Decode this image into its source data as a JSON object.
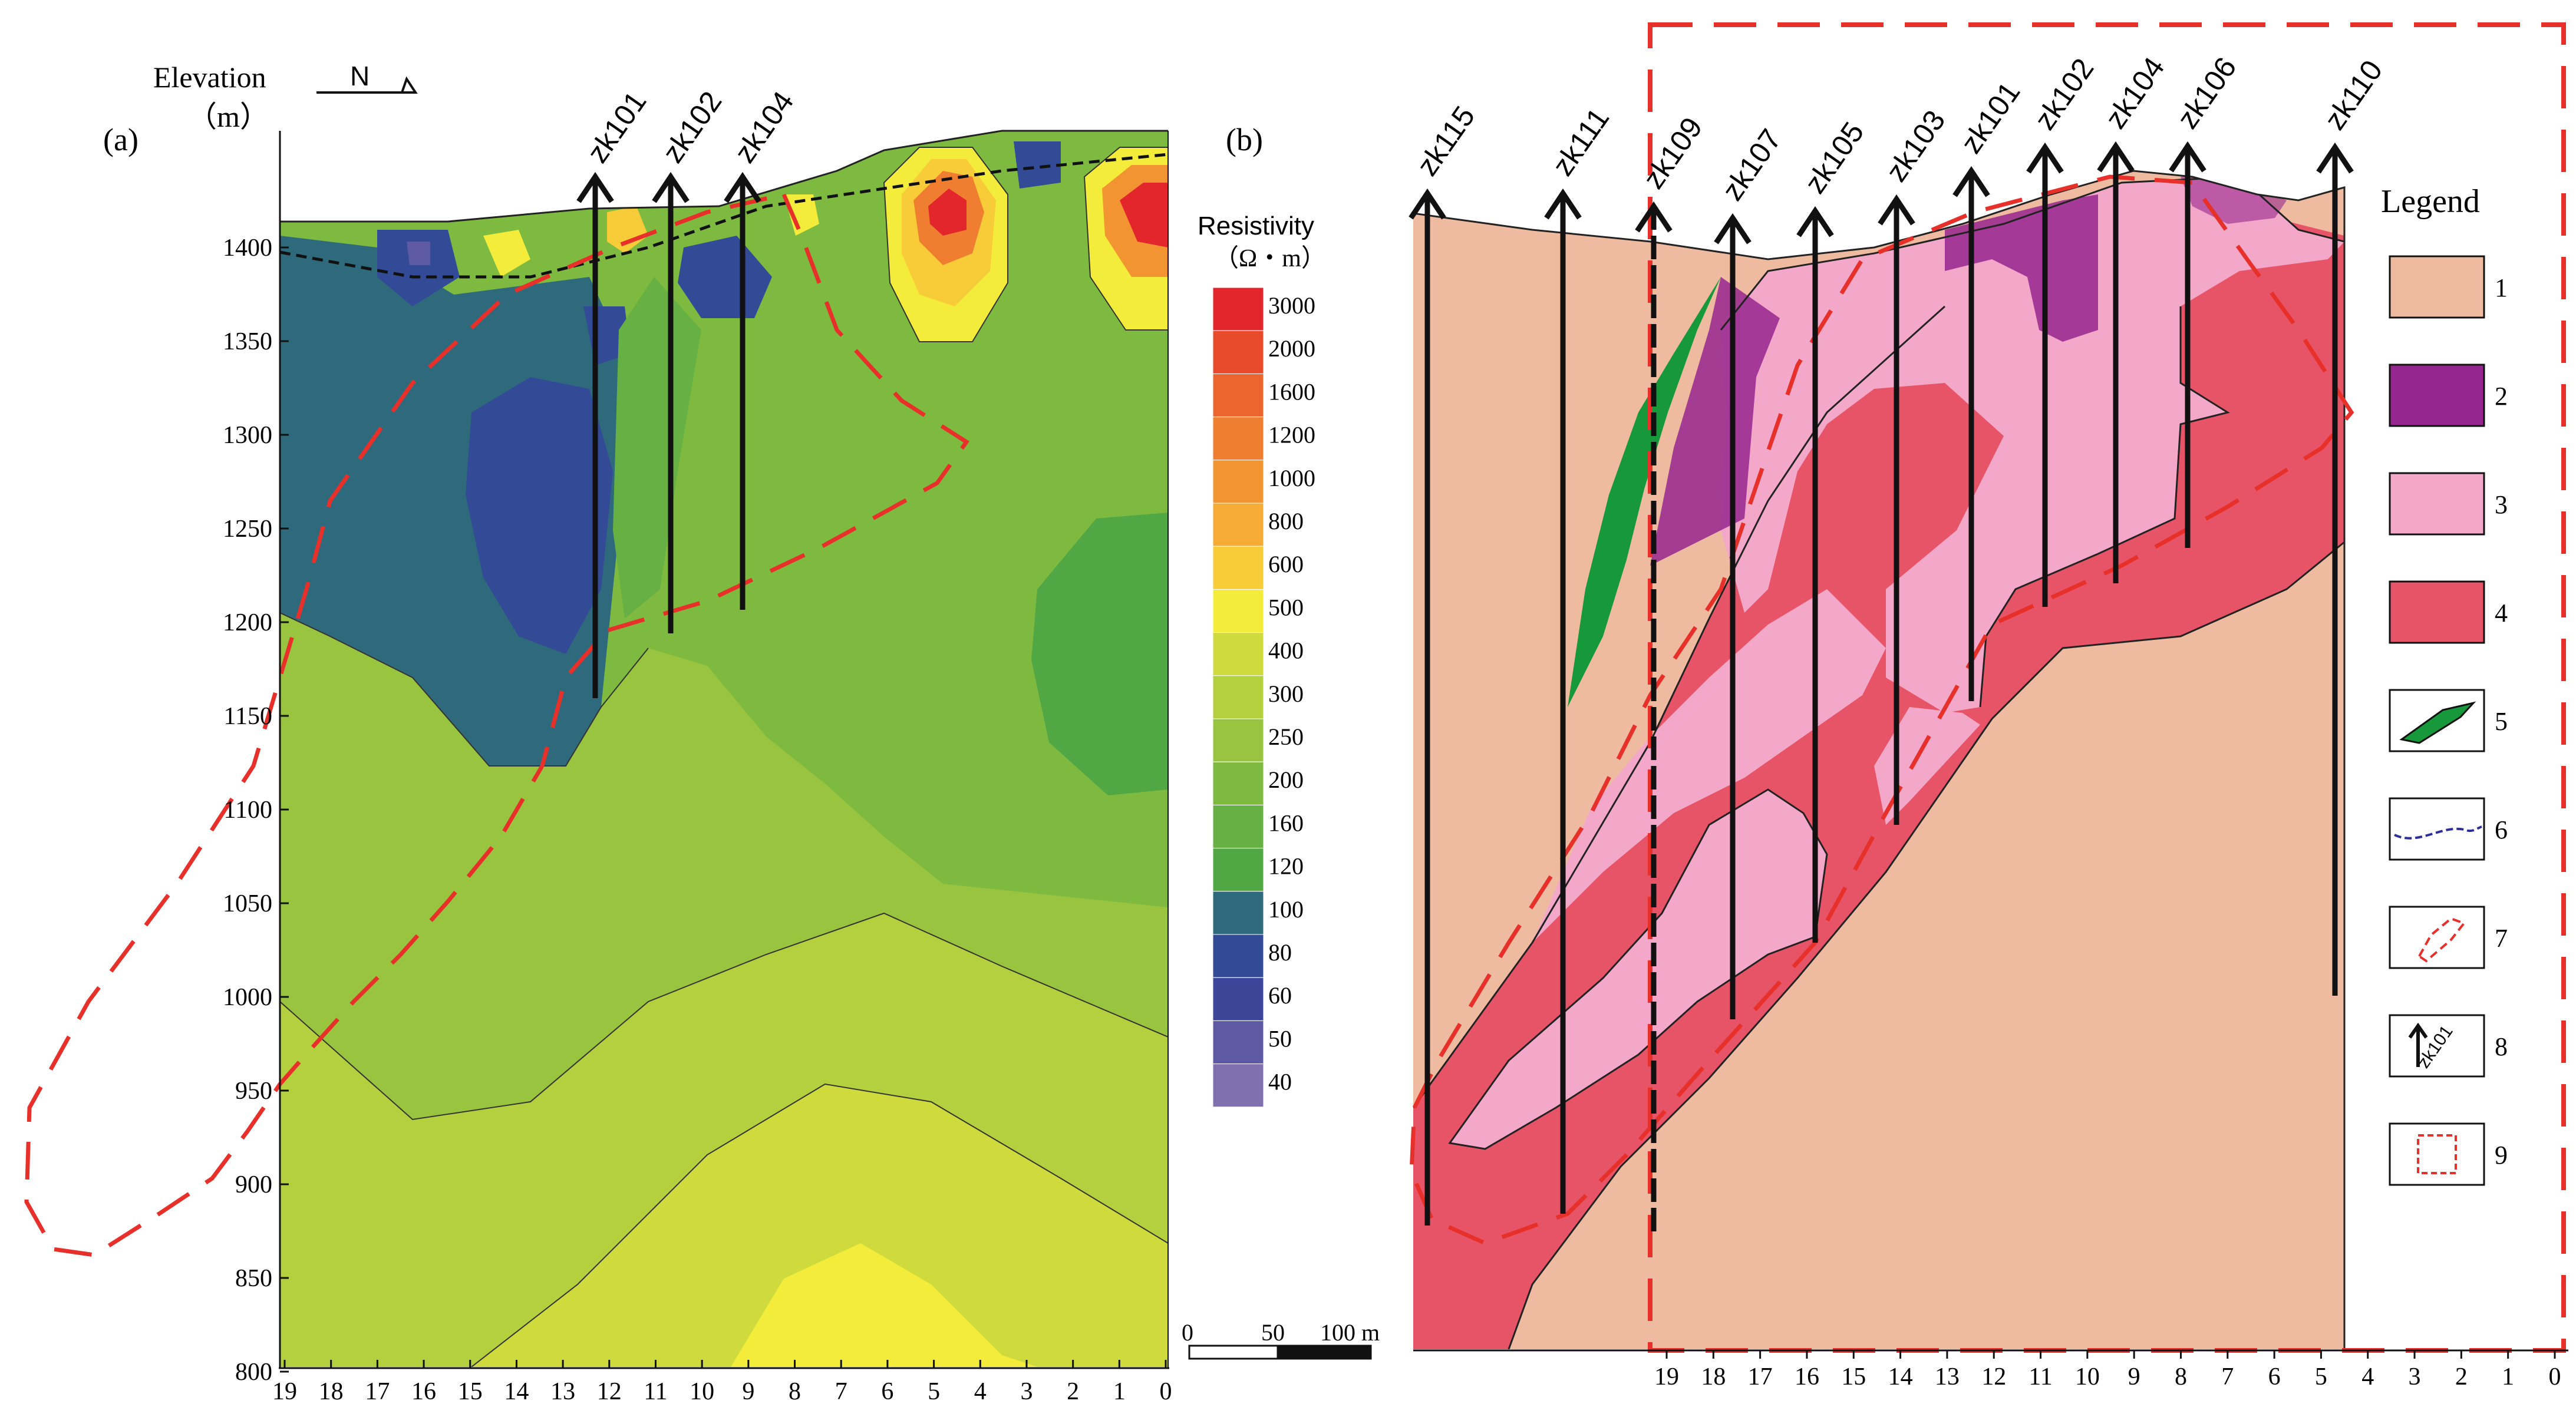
{
  "panel_a": {
    "label": "(a)",
    "elevation_label": "Elevation",
    "elevation_unit": "（m）",
    "north_label": "N",
    "y_ticks": [
      "1400",
      "1350",
      "1300",
      "1250",
      "1200",
      "1150",
      "1100",
      "1050",
      "1000",
      "950",
      "900",
      "850",
      "800"
    ],
    "x_ticks": [
      "19",
      "18",
      "17",
      "16",
      "15",
      "14",
      "13",
      "12",
      "11",
      "10",
      "9",
      "8",
      "7",
      "6",
      "5",
      "4",
      "3",
      "2",
      "1",
      "0"
    ],
    "boreholes": [
      "zk101",
      "zk102",
      "zk104"
    ]
  },
  "colorbar": {
    "label": "(b)",
    "title": "Resistivity",
    "unit": "（Ω・m）",
    "levels": [
      {
        "value": "3000",
        "color": "#e3262b"
      },
      {
        "value": "2000",
        "color": "#e84a2c"
      },
      {
        "value": "1600",
        "color": "#ec652e"
      },
      {
        "value": "1200",
        "color": "#ef7e30"
      },
      {
        "value": "1000",
        "color": "#f29432"
      },
      {
        "value": "800",
        "color": "#f5ab35"
      },
      {
        "value": "600",
        "color": "#f8cc38"
      },
      {
        "value": "500",
        "color": "#f3ec3a"
      },
      {
        "value": "400",
        "color": "#cfdb3c"
      },
      {
        "value": "300",
        "color": "#b4d03e"
      },
      {
        "value": "250",
        "color": "#98c43f"
      },
      {
        "value": "200",
        "color": "#7fba40"
      },
      {
        "value": "160",
        "color": "#67b043"
      },
      {
        "value": "120",
        "color": "#52a745"
      },
      {
        "value": "100",
        "color": "#2e6a7c"
      },
      {
        "value": "80",
        "color": "#334a96"
      },
      {
        "value": "60",
        "color": "#3b4699"
      },
      {
        "value": "50",
        "color": "#5d5aa3"
      },
      {
        "value": "40",
        "color": "#8070b0"
      }
    ]
  },
  "scale_bar": {
    "labels": [
      "0",
      "50",
      "100 m"
    ]
  },
  "panel_b": {
    "x_ticks": [
      "19",
      "18",
      "17",
      "16",
      "15",
      "14",
      "13",
      "12",
      "11",
      "10",
      "9",
      "8",
      "7",
      "6",
      "5",
      "4",
      "3",
      "2",
      "1",
      "0"
    ],
    "boreholes": [
      "zk115",
      "zk111",
      "zk109",
      "zk107",
      "zk105",
      "zk103",
      "zk101",
      "zk102",
      "zk104",
      "zk106",
      "zk110"
    ]
  },
  "legend": {
    "title": "Legend",
    "items": [
      {
        "number": "1",
        "meaning": "unit-1",
        "color": "#eebba1"
      },
      {
        "number": "2",
        "meaning": "unit-2",
        "color": "#96268f"
      },
      {
        "number": "3",
        "meaning": "unit-3",
        "color": "#f4a8c9"
      },
      {
        "number": "4",
        "meaning": "unit-4",
        "color": "#e85467"
      },
      {
        "number": "5",
        "meaning": "green-body",
        "color": "#17983a"
      },
      {
        "number": "6",
        "meaning": "blue-dashed-line",
        "color": "#2b2d9b"
      },
      {
        "number": "7",
        "meaning": "red-dashed-outline",
        "color": "#e8302b"
      },
      {
        "number": "8",
        "meaning": "borehole-symbol",
        "color": "#000000"
      },
      {
        "number": "9",
        "meaning": "red-dashed-box",
        "color": "#e8302b"
      }
    ],
    "borehole_symbol_label": "zk101"
  }
}
